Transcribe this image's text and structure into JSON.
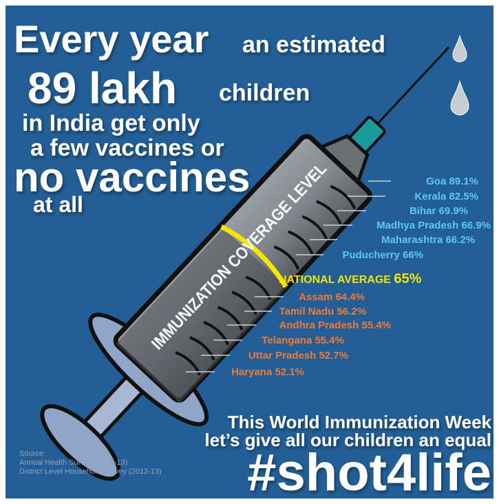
{
  "headline": [
    "Every year",
    "an estimated",
    "89 lakh",
    "children",
    "in India get only",
    "a few vaccines or",
    "no vaccines",
    "at all"
  ],
  "syringe_label": "IMMUNIZATION COVERAGE LEVEL",
  "states_above": [
    "Goa 89.1%",
    "Kerala 82.5%",
    "Bihar 69.9%",
    "Madhya Pradesh 66.9%",
    "Maharashtra 66.2%",
    "Puducherry 66%"
  ],
  "national_average": {
    "label": "NATIONAL AVERAGE",
    "value": "65%"
  },
  "states_below": [
    "Assam 64.4%",
    "Tamil Nadu 56.2%",
    "Andhra Pradesh 55.4%",
    "Telangana 55.4%",
    "Uttar Pradesh 52.7%",
    "Haryana 52.1%"
  ],
  "message": [
    "This World Immunization Week",
    "let’s give all our children an equal"
  ],
  "hashtag": "#shot4life",
  "source": [
    "Source:",
    "Annual Health Survey (2012-13)",
    "District Level Household Survey (2012-13)"
  ]
}
